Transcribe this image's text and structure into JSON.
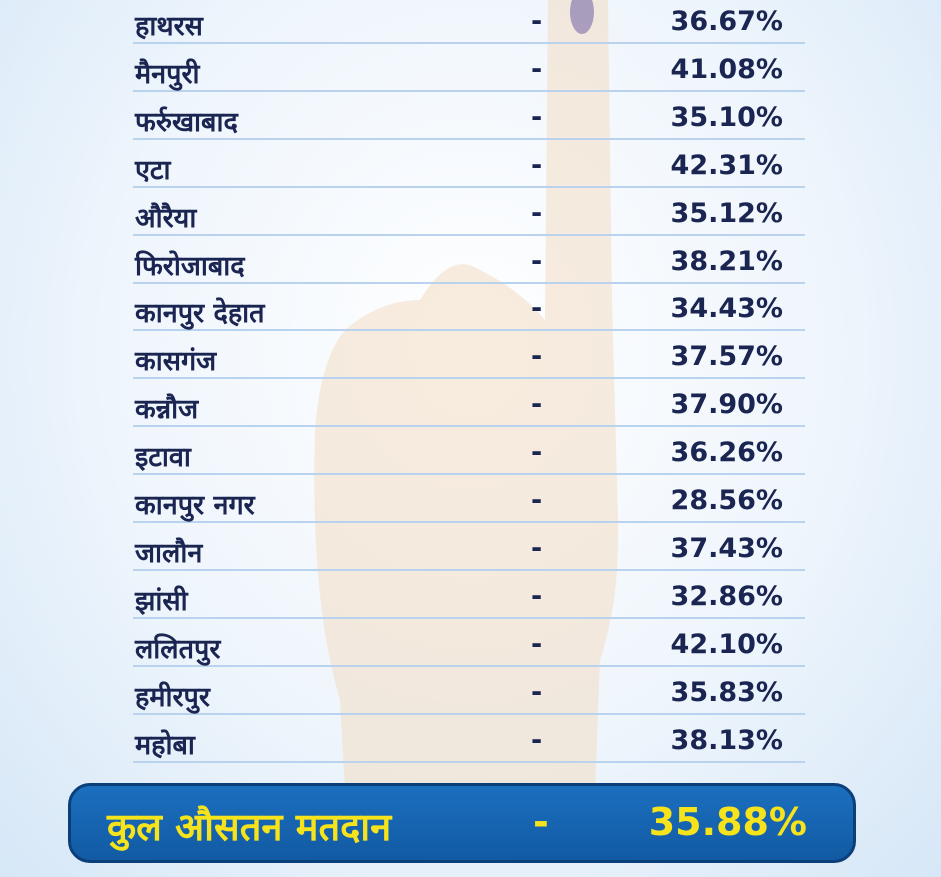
{
  "table": {
    "rows": [
      [
        "हाथरस",
        "-",
        "36.67%"
      ],
      [
        "मैनपुरी",
        "-",
        "41.08%"
      ],
      [
        "फर्रुखाबाद",
        "-",
        "35.10%"
      ],
      [
        "एटा",
        "-",
        "42.31%"
      ],
      [
        "औरैया",
        "-",
        "35.12%"
      ],
      [
        "फिरोजाबाद",
        "-",
        "38.21%"
      ],
      [
        "कानपुर देहात",
        "-",
        "34.43%"
      ],
      [
        "कासगंज",
        "-",
        "37.57%"
      ],
      [
        "कन्नौज",
        "-",
        "37.90%"
      ],
      [
        "इटावा",
        "-",
        "36.26%"
      ],
      [
        "कानपुर नगर",
        "-",
        "28.56%"
      ],
      [
        "जालौन",
        "-",
        "37.43%"
      ],
      [
        "झांसी",
        "-",
        "32.86%"
      ],
      [
        "ललितपुर",
        "-",
        "42.10%"
      ],
      [
        "हमीरपुर",
        "-",
        "35.83%"
      ],
      [
        "महोबा",
        "-",
        "38.13%"
      ]
    ]
  },
  "total": {
    "label": "कुल औसतन मतदान",
    "dash": "-",
    "value": "35.88%"
  }
}
